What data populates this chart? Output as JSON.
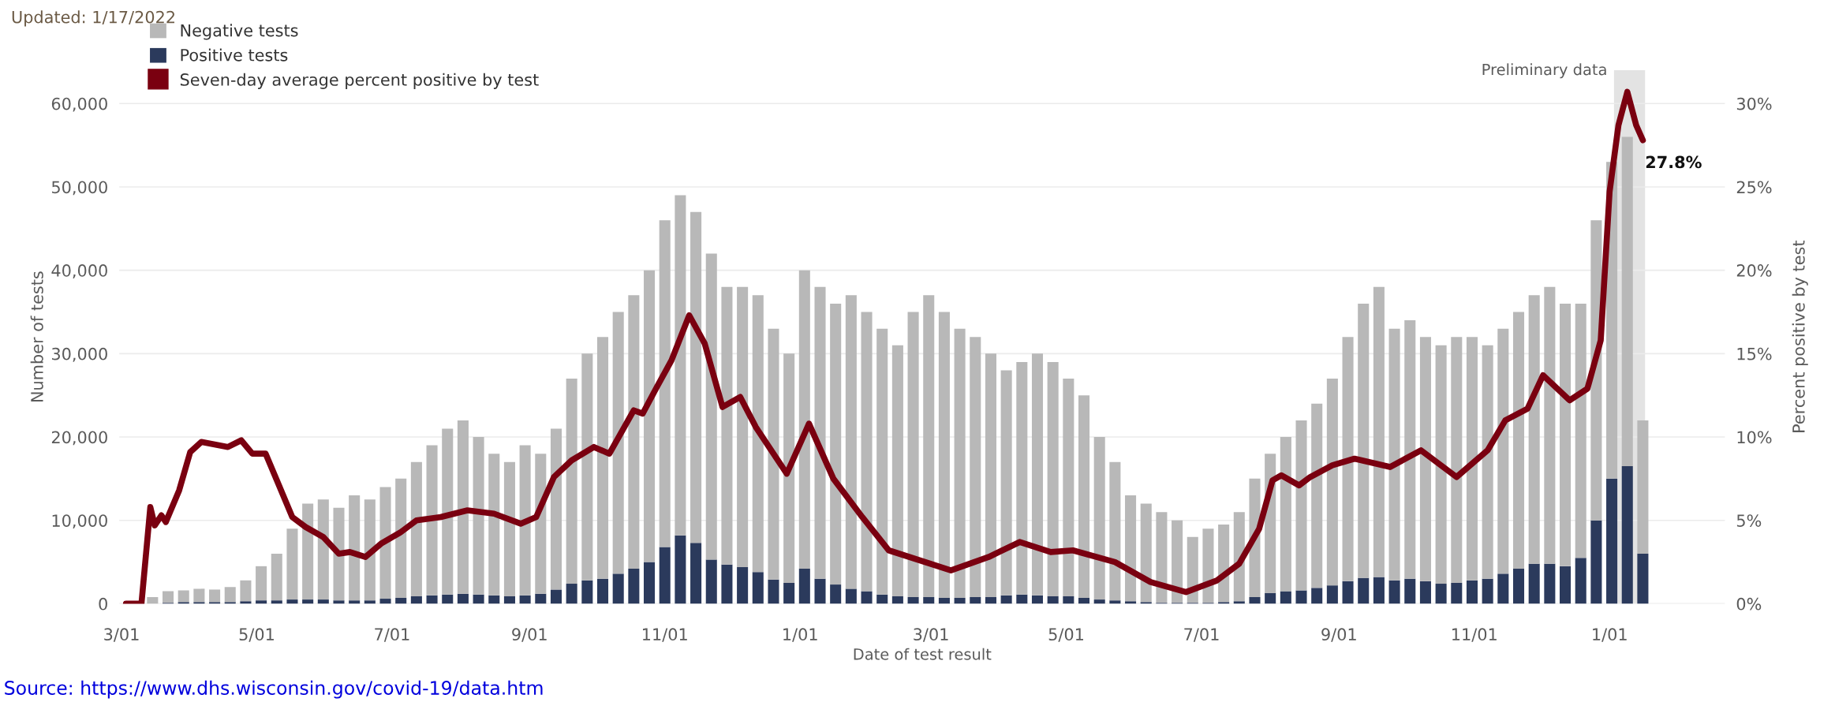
{
  "chart_data": {
    "type": "bar",
    "stacked": true,
    "xlabel": "Date of test result",
    "ylabel": "Number of tests",
    "y2label": "Percent positive by test",
    "annotations": [
      "Updated: 1/17/2022",
      "Source: https://www.dhs.wisconsin.gov/covid-19/data.htm"
    ],
    "x": [
      "2020-03-01",
      "2020-03-08",
      "2020-03-15",
      "2020-03-22",
      "2020-03-29",
      "2020-04-05",
      "2020-04-12",
      "2020-04-19",
      "2020-04-26",
      "2020-05-03",
      "2020-05-10",
      "2020-05-17",
      "2020-05-24",
      "2020-05-31",
      "2020-06-07",
      "2020-06-14",
      "2020-06-21",
      "2020-06-28",
      "2020-07-05",
      "2020-07-12",
      "2020-07-19",
      "2020-07-26",
      "2020-08-02",
      "2020-08-09",
      "2020-08-16",
      "2020-08-23",
      "2020-08-30",
      "2020-09-06",
      "2020-09-13",
      "2020-09-20",
      "2020-09-27",
      "2020-10-04",
      "2020-10-11",
      "2020-10-18",
      "2020-10-25",
      "2020-11-01",
      "2020-11-08",
      "2020-11-15",
      "2020-11-22",
      "2020-11-29",
      "2020-12-06",
      "2020-12-13",
      "2020-12-20",
      "2020-12-27",
      "2021-01-03",
      "2021-01-10",
      "2021-01-17",
      "2021-01-24",
      "2021-01-31",
      "2021-02-07",
      "2021-02-14",
      "2021-02-21",
      "2021-02-28",
      "2021-03-07",
      "2021-03-14",
      "2021-03-21",
      "2021-03-28",
      "2021-04-04",
      "2021-04-11",
      "2021-04-18",
      "2021-04-25",
      "2021-05-02",
      "2021-05-09",
      "2021-05-16",
      "2021-05-23",
      "2021-05-30",
      "2021-06-06",
      "2021-06-13",
      "2021-06-20",
      "2021-06-27",
      "2021-07-04",
      "2021-07-11",
      "2021-07-18",
      "2021-07-25",
      "2021-08-01",
      "2021-08-08",
      "2021-08-15",
      "2021-08-22",
      "2021-08-29",
      "2021-09-05",
      "2021-09-12",
      "2021-09-19",
      "2021-09-26",
      "2021-10-03",
      "2021-10-10",
      "2021-10-17",
      "2021-10-24",
      "2021-10-31",
      "2021-11-07",
      "2021-11-14",
      "2021-11-21",
      "2021-11-28",
      "2021-12-05",
      "2021-12-12",
      "2021-12-19",
      "2021-12-26",
      "2022-01-02",
      "2022-01-09",
      "2022-01-16"
    ],
    "series": [
      {
        "name": "Positive tests",
        "color": "#2b3a5c",
        "values": [
          0,
          0,
          0,
          100,
          200,
          200,
          200,
          200,
          300,
          400,
          400,
          500,
          500,
          500,
          400,
          400,
          400,
          600,
          700,
          900,
          1000,
          1100,
          1200,
          1100,
          1000,
          900,
          1000,
          1200,
          1700,
          2400,
          2800,
          3000,
          3600,
          4200,
          5000,
          6800,
          8200,
          7300,
          5300,
          4700,
          4400,
          3800,
          2900,
          2500,
          4200,
          3000,
          2300,
          1800,
          1500,
          1100,
          900,
          800,
          800,
          700,
          700,
          800,
          800,
          1000,
          1100,
          1000,
          900,
          900,
          700,
          500,
          400,
          300,
          200,
          100,
          100,
          100,
          100,
          200,
          300,
          800,
          1300,
          1500,
          1600,
          1900,
          2200,
          2700,
          3100,
          3200,
          2800,
          3000,
          2700,
          2400,
          2500,
          2800,
          3000,
          3600,
          4200,
          4800,
          4800,
          4500,
          5500,
          10000,
          15000,
          16500,
          6000
        ]
      },
      {
        "name": "Negative tests",
        "color": "#b8b8b8",
        "values": [
          0,
          null,
          800,
          1400,
          1400,
          1600,
          1500,
          1800,
          2500,
          4100,
          5600,
          8500,
          11500,
          12000,
          11100,
          12600,
          12100,
          13400,
          14300,
          16100,
          18000,
          19900,
          20800,
          18900,
          17000,
          16100,
          18000,
          16800,
          19300,
          24600,
          27200,
          29000,
          31400,
          32800,
          35000,
          39200,
          40800,
          39700,
          36700,
          33300,
          33600,
          33200,
          30100,
          27500,
          35800,
          35000,
          33700,
          35200,
          33500,
          31900,
          30100,
          34200,
          36200,
          34300,
          32300,
          31200,
          29200,
          27000,
          27900,
          29000,
          28100,
          26100,
          24300,
          19500,
          16600,
          12700,
          11800,
          10900,
          9900,
          7900,
          8900,
          9300,
          10700,
          14200,
          16700,
          18500,
          20400,
          22100,
          24800,
          29300,
          32900,
          34800,
          30200,
          31000,
          29300,
          28600,
          29500,
          29200,
          28000,
          29400,
          30800,
          32200,
          33200,
          31500,
          30500,
          36000,
          38000,
          39500,
          16000
        ]
      },
      {
        "name": "Seven-day average percent positive by test",
        "type": "line",
        "axis": "y2",
        "color": "#7a0010",
        "x": [
          "2020-03-03",
          "2020-03-10",
          "2020-03-14",
          "2020-03-16",
          "2020-03-19",
          "2020-03-21",
          "2020-03-27",
          "2020-04-01",
          "2020-04-06",
          "2020-04-18",
          "2020-04-24",
          "2020-04-29",
          "2020-05-05",
          "2020-05-11",
          "2020-05-17",
          "2020-05-23",
          "2020-05-31",
          "2020-06-07",
          "2020-06-12",
          "2020-06-19",
          "2020-06-26",
          "2020-07-05",
          "2020-07-12",
          "2020-07-23",
          "2020-08-04",
          "2020-08-16",
          "2020-08-28",
          "2020-09-04",
          "2020-09-12",
          "2020-09-20",
          "2020-09-30",
          "2020-10-07",
          "2020-10-18",
          "2020-10-22",
          "2020-10-28",
          "2020-11-04",
          "2020-11-12",
          "2020-11-19",
          "2020-11-27",
          "2020-12-05",
          "2020-12-12",
          "2020-12-26",
          "2021-01-05",
          "2021-01-16",
          "2021-01-29",
          "2021-02-10",
          "2021-03-10",
          "2021-03-27",
          "2021-04-10",
          "2021-04-24",
          "2021-05-04",
          "2021-05-23",
          "2021-06-08",
          "2021-06-24",
          "2021-07-08",
          "2021-07-18",
          "2021-07-27",
          "2021-08-02",
          "2021-08-06",
          "2021-08-14",
          "2021-08-19",
          "2021-08-29",
          "2021-09-08",
          "2021-09-24",
          "2021-10-08",
          "2021-10-24",
          "2021-11-07",
          "2021-11-15",
          "2021-11-25",
          "2021-12-02",
          "2021-12-14",
          "2021-12-22",
          "2021-12-28",
          "2022-01-01",
          "2022-01-05",
          "2022-01-09",
          "2022-01-13",
          "2022-01-16"
        ],
        "values": [
          0,
          0,
          5.8,
          4.7,
          5.3,
          4.9,
          6.8,
          9.1,
          9.7,
          9.4,
          9.8,
          9.0,
          9.0,
          7.1,
          5.2,
          4.6,
          4.0,
          3.0,
          3.1,
          2.8,
          3.6,
          4.3,
          5.0,
          5.2,
          5.6,
          5.4,
          4.8,
          5.2,
          7.6,
          8.6,
          9.4,
          9.0,
          11.6,
          11.4,
          12.9,
          14.6,
          17.3,
          15.6,
          11.8,
          12.4,
          10.6,
          7.8,
          10.8,
          7.5,
          5.2,
          3.2,
          2.0,
          2.8,
          3.7,
          3.1,
          3.2,
          2.5,
          1.3,
          0.7,
          1.4,
          2.4,
          4.5,
          7.4,
          7.7,
          7.1,
          7.6,
          8.3,
          8.7,
          8.2,
          9.2,
          7.6,
          9.2,
          11.0,
          11.7,
          13.7,
          12.2,
          12.9,
          15.8,
          24.7,
          28.7,
          30.7,
          28.7,
          27.8
        ],
        "value_labels": [
          null,
          null,
          null,
          null,
          null,
          null,
          null,
          null,
          null,
          null,
          null,
          null,
          null,
          null,
          null,
          null,
          null,
          null,
          null,
          null,
          null,
          null,
          null,
          null,
          null,
          null,
          null,
          null,
          null,
          null,
          null,
          null,
          null,
          null,
          null,
          null,
          null,
          null,
          null,
          null,
          null,
          null,
          null,
          null,
          null,
          null,
          null,
          null,
          null,
          null,
          null,
          null,
          null,
          null,
          null,
          null,
          null,
          null,
          null,
          null,
          null,
          null,
          null,
          null,
          null,
          null,
          null,
          null,
          null,
          null,
          null,
          null,
          null,
          null,
          null,
          null,
          null,
          "27.8%"
        ]
      }
    ],
    "xlim": [
      "2020-02-29",
      "2022-02-22"
    ],
    "xticks": [
      {
        "value": "2020-03-01",
        "label": "3/01"
      },
      {
        "value": "2020-05-01",
        "label": "5/01"
      },
      {
        "value": "2020-07-01",
        "label": "7/01"
      },
      {
        "value": "2020-09-01",
        "label": "9/01"
      },
      {
        "value": "2020-11-01",
        "label": "11/01"
      },
      {
        "value": "2021-01-01",
        "label": "1/01"
      },
      {
        "value": "2021-03-01",
        "label": "3/01"
      },
      {
        "value": "2021-05-01",
        "label": "5/01"
      },
      {
        "value": "2021-07-01",
        "label": "7/01"
      },
      {
        "value": "2021-09-01",
        "label": "9/01"
      },
      {
        "value": "2021-11-01",
        "label": "11/01"
      },
      {
        "value": "2022-01-01",
        "label": "1/01"
      }
    ],
    "ylim": [
      0,
      64000
    ],
    "yticks": [
      {
        "value": 0,
        "label": "0"
      },
      {
        "value": 10000,
        "label": "10,000"
      },
      {
        "value": 20000,
        "label": "20,000"
      },
      {
        "value": 30000,
        "label": "30,000"
      },
      {
        "value": 40000,
        "label": "40,000"
      },
      {
        "value": 50000,
        "label": "50,000"
      },
      {
        "value": 60000,
        "label": "60,000"
      }
    ],
    "y2lim": [
      0,
      32
    ],
    "y2ticks": [
      {
        "value": 0,
        "label": "0%"
      },
      {
        "value": 5,
        "label": "5%"
      },
      {
        "value": 10,
        "label": "10%"
      },
      {
        "value": 15,
        "label": "15%"
      },
      {
        "value": 20,
        "label": "20%"
      },
      {
        "value": 25,
        "label": "25%"
      },
      {
        "value": 30,
        "label": "30%"
      }
    ],
    "bands": [
      {
        "axis": "x",
        "from": "2022-01-03",
        "to": "2022-01-17",
        "label": "Preliminary data",
        "color": "#e3e3e3"
      }
    ],
    "grid": "y",
    "legend": "top left"
  }
}
